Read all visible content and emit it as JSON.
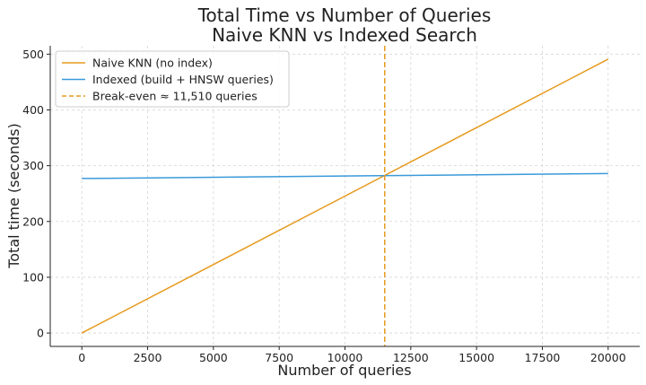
{
  "chart_data": {
    "type": "line",
    "title": "Total Time vs Number of Queries",
    "subtitle": "Naive KNN vs Indexed Search",
    "xlabel": "Number of queries",
    "ylabel": "Total time (seconds)",
    "xlim": [
      -1200,
      21200
    ],
    "ylim": [
      -24,
      515
    ],
    "x_ticks": [
      0,
      2500,
      5000,
      7500,
      10000,
      12500,
      15000,
      17500,
      20000
    ],
    "y_ticks": [
      0,
      100,
      200,
      300,
      400,
      500
    ],
    "grid": true,
    "legend_position": "top-left",
    "series": [
      {
        "name": "Naive KNN (no index)",
        "color": "#e69a1e",
        "style": "solid",
        "x": [
          0,
          20000
        ],
        "y": [
          0,
          491
        ]
      },
      {
        "name": "Indexed (build + HNSW queries)",
        "color": "#3a9ad9",
        "style": "solid",
        "x": [
          0,
          20000
        ],
        "y": [
          277,
          286
        ]
      },
      {
        "name": "Break-even ≈ 11,510 queries",
        "color": "#e69a1e",
        "style": "dashed",
        "type": "vline",
        "x_value": 11510
      }
    ]
  }
}
